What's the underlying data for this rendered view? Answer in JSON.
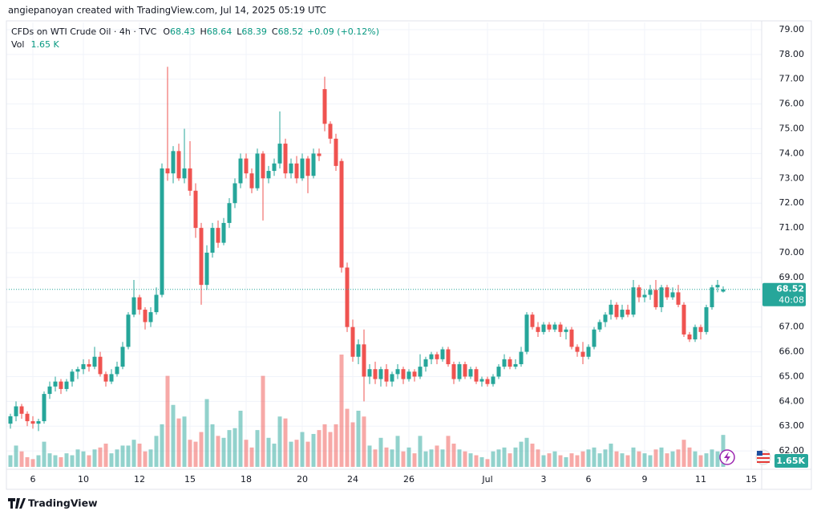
{
  "chart_data": {
    "type": "candlestick",
    "credit": "angiepanoyan created with TradingView.com, Jul 14, 2025 05:19 UTC",
    "title": "CFDs on WTI Crude Oil · 4h · TVC",
    "legend": {
      "open_label": "O",
      "open": 68.43,
      "high_label": "H",
      "high": 68.64,
      "low_label": "L",
      "low": 68.39,
      "close_label": "C",
      "close": 68.52,
      "change": "+0.09 (+0.12%)",
      "volume_label": "Vol",
      "volume_text": "1.65 K"
    },
    "last_price": 68.52,
    "countdown": "40:08",
    "volume_badge": "1.65K",
    "brand": "TradingView",
    "up_color": "#26a69a",
    "down_color": "#ef5350",
    "grid": true,
    "ylim": [
      61.26,
      79.29
    ],
    "yticks": [
      {
        "value": 62,
        "label": "62.00"
      },
      {
        "value": 63,
        "label": "63.00"
      },
      {
        "value": 64,
        "label": "64.00"
      },
      {
        "value": 65,
        "label": "65.00"
      },
      {
        "value": 66,
        "label": "66.00"
      },
      {
        "value": 67,
        "label": "67.00"
      },
      {
        "value": 68,
        "label": "68.00"
      },
      {
        "value": 69,
        "label": "69.00"
      },
      {
        "value": 70,
        "label": "70.00"
      },
      {
        "value": 71,
        "label": "71.00"
      },
      {
        "value": 72,
        "label": "72.00"
      },
      {
        "value": 73,
        "label": "73.00"
      },
      {
        "value": 74,
        "label": "74.00"
      },
      {
        "value": 75,
        "label": "75.00"
      },
      {
        "value": 76,
        "label": "76.00"
      },
      {
        "value": 77,
        "label": "77.00"
      },
      {
        "value": 78,
        "label": "78.00"
      },
      {
        "value": 79,
        "label": "79.00"
      }
    ],
    "categories": [
      null,
      null,
      null,
      null,
      "6",
      null,
      null,
      null,
      null,
      null,
      null,
      null,
      null,
      "10",
      null,
      null,
      null,
      null,
      null,
      null,
      null,
      null,
      null,
      "12",
      null,
      null,
      null,
      null,
      null,
      null,
      null,
      null,
      "15",
      null,
      null,
      null,
      null,
      null,
      null,
      null,
      null,
      null,
      "18",
      null,
      null,
      null,
      null,
      null,
      null,
      null,
      null,
      null,
      "20",
      null,
      null,
      null,
      null,
      null,
      null,
      null,
      null,
      "24",
      null,
      null,
      null,
      null,
      null,
      null,
      null,
      null,
      null,
      "26",
      null,
      null,
      null,
      null,
      null,
      null,
      null,
      null,
      null,
      null,
      null,
      null,
      null,
      "Jul",
      null,
      null,
      null,
      null,
      null,
      null,
      null,
      null,
      null,
      "3",
      null,
      null,
      null,
      null,
      null,
      null,
      null,
      "6",
      null,
      null,
      null,
      null,
      null,
      null,
      null,
      null,
      null,
      "9",
      null,
      null,
      null,
      null,
      null,
      null,
      null,
      null,
      null,
      "11",
      null,
      null,
      null,
      null,
      null,
      null,
      null,
      null,
      "15",
      null
    ],
    "ohlc": [
      [
        63.1,
        63.5,
        62.9,
        63.4
      ],
      [
        63.4,
        64.0,
        63.2,
        63.8
      ],
      [
        63.8,
        63.9,
        63.3,
        63.5
      ],
      [
        63.5,
        63.6,
        63.0,
        63.2
      ],
      [
        63.2,
        63.4,
        62.9,
        63.1
      ],
      [
        63.1,
        63.3,
        62.8,
        63.2
      ],
      [
        63.2,
        64.4,
        63.1,
        64.3
      ],
      [
        64.3,
        64.8,
        64.1,
        64.6
      ],
      [
        64.6,
        65.0,
        64.4,
        64.8
      ],
      [
        64.8,
        64.9,
        64.3,
        64.5
      ],
      [
        64.5,
        64.9,
        64.4,
        64.8
      ],
      [
        64.8,
        65.3,
        64.6,
        65.2
      ],
      [
        65.2,
        65.4,
        64.9,
        65.3
      ],
      [
        65.3,
        65.7,
        65.1,
        65.5
      ],
      [
        65.5,
        65.7,
        65.2,
        65.4
      ],
      [
        65.4,
        66.2,
        65.3,
        65.8
      ],
      [
        65.8,
        66.0,
        65.0,
        65.1
      ],
      [
        65.1,
        65.2,
        64.6,
        64.8
      ],
      [
        64.8,
        65.3,
        64.7,
        65.1
      ],
      [
        65.1,
        65.6,
        65.0,
        65.4
      ],
      [
        65.4,
        66.4,
        65.3,
        66.2
      ],
      [
        66.2,
        67.6,
        66.1,
        67.5
      ],
      [
        67.5,
        68.9,
        67.4,
        68.2
      ],
      [
        68.2,
        68.3,
        67.5,
        67.7
      ],
      [
        67.7,
        67.8,
        66.9,
        67.2
      ],
      [
        67.2,
        67.8,
        67.0,
        67.6
      ],
      [
        67.6,
        68.6,
        67.5,
        68.3
      ],
      [
        68.3,
        73.6,
        68.2,
        73.4
      ],
      [
        73.4,
        77.5,
        72.9,
        73.2
      ],
      [
        73.2,
        74.3,
        72.8,
        74.1
      ],
      [
        74.1,
        74.4,
        72.9,
        73.0
      ],
      [
        73.0,
        75.0,
        72.8,
        73.4
      ],
      [
        73.4,
        74.5,
        72.3,
        72.5
      ],
      [
        72.5,
        72.8,
        70.6,
        71.0
      ],
      [
        71.0,
        71.2,
        67.9,
        68.7
      ],
      [
        68.7,
        70.3,
        68.5,
        70.0
      ],
      [
        70.0,
        71.2,
        69.8,
        71.0
      ],
      [
        71.0,
        71.3,
        70.2,
        70.4
      ],
      [
        70.4,
        71.4,
        70.3,
        71.2
      ],
      [
        71.2,
        72.2,
        71.0,
        72.0
      ],
      [
        72.0,
        73.0,
        71.8,
        72.8
      ],
      [
        72.8,
        74.0,
        72.6,
        73.8
      ],
      [
        73.8,
        74.0,
        73.0,
        73.2
      ],
      [
        73.2,
        73.4,
        72.4,
        72.6
      ],
      [
        72.6,
        74.2,
        72.5,
        74.0
      ],
      [
        74.0,
        74.1,
        71.3,
        73.0
      ],
      [
        73.0,
        73.5,
        72.8,
        73.3
      ],
      [
        73.3,
        73.8,
        73.1,
        73.6
      ],
      [
        73.6,
        75.7,
        73.4,
        74.4
      ],
      [
        74.4,
        74.6,
        73.0,
        73.2
      ],
      [
        73.2,
        73.8,
        73.0,
        73.6
      ],
      [
        73.6,
        73.9,
        72.8,
        73.0
      ],
      [
        73.0,
        74.0,
        72.9,
        73.8
      ],
      [
        73.8,
        73.9,
        72.4,
        73.1
      ],
      [
        73.1,
        74.2,
        73.0,
        74.0
      ],
      [
        74.0,
        74.2,
        73.7,
        73.9
      ],
      [
        76.6,
        77.1,
        74.9,
        75.2
      ],
      [
        75.2,
        75.3,
        74.4,
        74.6
      ],
      [
        74.6,
        74.8,
        73.3,
        73.5
      ],
      [
        73.7,
        73.8,
        69.2,
        69.4
      ],
      [
        69.4,
        69.6,
        66.8,
        67.0
      ],
      [
        67.0,
        67.3,
        65.6,
        65.8
      ],
      [
        65.8,
        66.5,
        65.5,
        66.3
      ],
      [
        66.3,
        66.9,
        64.0,
        65.0
      ],
      [
        65.0,
        65.5,
        64.7,
        65.3
      ],
      [
        65.3,
        65.6,
        64.7,
        64.9
      ],
      [
        64.9,
        65.4,
        64.6,
        65.3
      ],
      [
        65.3,
        65.5,
        64.6,
        64.8
      ],
      [
        64.8,
        65.2,
        64.6,
        65.1
      ],
      [
        65.1,
        65.5,
        64.9,
        65.3
      ],
      [
        65.3,
        65.4,
        64.7,
        64.9
      ],
      [
        64.9,
        65.3,
        64.8,
        65.2
      ],
      [
        65.2,
        65.3,
        64.8,
        65.0
      ],
      [
        65.0,
        65.9,
        64.9,
        65.4
      ],
      [
        65.4,
        65.8,
        65.2,
        65.7
      ],
      [
        65.7,
        66.0,
        65.5,
        65.9
      ],
      [
        65.9,
        66.0,
        65.5,
        65.7
      ],
      [
        65.7,
        66.2,
        65.6,
        66.1
      ],
      [
        66.1,
        66.2,
        65.4,
        65.5
      ],
      [
        65.5,
        65.6,
        64.7,
        64.9
      ],
      [
        64.9,
        65.6,
        64.8,
        65.5
      ],
      [
        65.5,
        65.6,
        64.9,
        65.0
      ],
      [
        65.0,
        65.4,
        64.9,
        65.3
      ],
      [
        65.3,
        65.4,
        64.7,
        64.8
      ],
      [
        64.8,
        65.0,
        64.6,
        64.9
      ],
      [
        64.9,
        65.0,
        64.6,
        64.7
      ],
      [
        64.7,
        65.1,
        64.6,
        65.0
      ],
      [
        65.0,
        65.5,
        64.9,
        65.4
      ],
      [
        65.4,
        65.9,
        65.3,
        65.7
      ],
      [
        65.7,
        65.8,
        65.3,
        65.4
      ],
      [
        65.4,
        65.7,
        65.3,
        65.5
      ],
      [
        65.5,
        66.2,
        65.4,
        66.0
      ],
      [
        66.0,
        67.6,
        65.9,
        67.5
      ],
      [
        67.5,
        67.6,
        66.9,
        67.0
      ],
      [
        67.0,
        67.2,
        66.6,
        66.8
      ],
      [
        66.8,
        67.2,
        66.7,
        67.1
      ],
      [
        67.1,
        67.2,
        66.8,
        66.9
      ],
      [
        66.9,
        67.2,
        66.8,
        67.1
      ],
      [
        67.1,
        67.2,
        66.6,
        66.8
      ],
      [
        66.8,
        67.0,
        66.5,
        66.9
      ],
      [
        66.9,
        67.0,
        66.1,
        66.2
      ],
      [
        66.2,
        66.3,
        65.8,
        66.0
      ],
      [
        66.0,
        66.4,
        65.5,
        65.8
      ],
      [
        65.8,
        66.3,
        65.7,
        66.2
      ],
      [
        66.2,
        67.0,
        66.1,
        66.9
      ],
      [
        66.9,
        67.3,
        66.8,
        67.2
      ],
      [
        67.2,
        67.6,
        67.0,
        67.5
      ],
      [
        67.5,
        68.1,
        67.3,
        67.9
      ],
      [
        67.9,
        68.0,
        67.3,
        67.4
      ],
      [
        67.4,
        67.9,
        67.3,
        67.7
      ],
      [
        67.7,
        67.9,
        67.4,
        67.5
      ],
      [
        67.5,
        68.9,
        67.4,
        68.6
      ],
      [
        68.6,
        68.7,
        68.0,
        68.2
      ],
      [
        68.2,
        68.5,
        68.0,
        68.3
      ],
      [
        68.3,
        68.7,
        68.1,
        68.5
      ],
      [
        68.5,
        68.9,
        67.7,
        67.8
      ],
      [
        67.8,
        68.7,
        67.6,
        68.6
      ],
      [
        68.6,
        68.7,
        68.1,
        68.2
      ],
      [
        68.2,
        68.6,
        68.1,
        68.4
      ],
      [
        68.4,
        68.7,
        67.8,
        67.9
      ],
      [
        67.9,
        68.0,
        66.6,
        66.7
      ],
      [
        66.7,
        66.8,
        66.4,
        66.5
      ],
      [
        66.5,
        67.1,
        66.4,
        67.0
      ],
      [
        67.0,
        67.1,
        66.5,
        66.8
      ],
      [
        66.8,
        67.9,
        66.7,
        67.8
      ],
      [
        67.8,
        68.7,
        67.7,
        68.6
      ],
      [
        68.6,
        68.9,
        68.4,
        68.7
      ],
      [
        68.43,
        68.64,
        68.39,
        68.52
      ],
      null,
      null,
      null,
      null,
      null,
      null
    ],
    "volume": [
      0.6,
      1.1,
      0.8,
      0.5,
      0.4,
      0.6,
      1.3,
      0.7,
      0.6,
      0.5,
      0.7,
      0.6,
      0.9,
      0.8,
      0.6,
      0.9,
      1.0,
      1.2,
      0.7,
      0.9,
      1.1,
      1.1,
      1.4,
      1.2,
      0.8,
      0.9,
      1.6,
      2.2,
      4.7,
      3.2,
      2.5,
      2.6,
      1.4,
      1.3,
      1.8,
      3.5,
      2.2,
      1.6,
      1.5,
      1.9,
      2.0,
      2.9,
      1.4,
      1.0,
      1.9,
      4.7,
      1.5,
      1.2,
      2.6,
      2.5,
      1.3,
      1.4,
      1.8,
      1.3,
      1.7,
      1.9,
      2.2,
      1.8,
      2.2,
      5.8,
      3.0,
      2.3,
      2.9,
      2.6,
      1.1,
      0.9,
      1.5,
      1.0,
      0.9,
      1.6,
      0.8,
      1.0,
      0.7,
      1.6,
      0.8,
      0.9,
      1.1,
      0.9,
      1.6,
      1.2,
      0.9,
      0.8,
      0.7,
      0.6,
      0.5,
      0.4,
      0.8,
      0.9,
      1.0,
      0.7,
      1.0,
      1.3,
      1.5,
      1.2,
      0.9,
      0.6,
      0.7,
      0.8,
      0.6,
      0.5,
      0.7,
      0.6,
      0.8,
      0.9,
      1.0,
      0.7,
      0.9,
      1.2,
      0.8,
      0.7,
      0.6,
      1.0,
      0.8,
      0.7,
      0.6,
      0.9,
      1.0,
      0.7,
      0.8,
      0.9,
      1.4,
      1.0,
      0.8,
      0.6,
      0.7,
      0.9,
      0.8,
      1.65,
      null,
      null,
      null,
      null,
      null,
      null
    ]
  }
}
